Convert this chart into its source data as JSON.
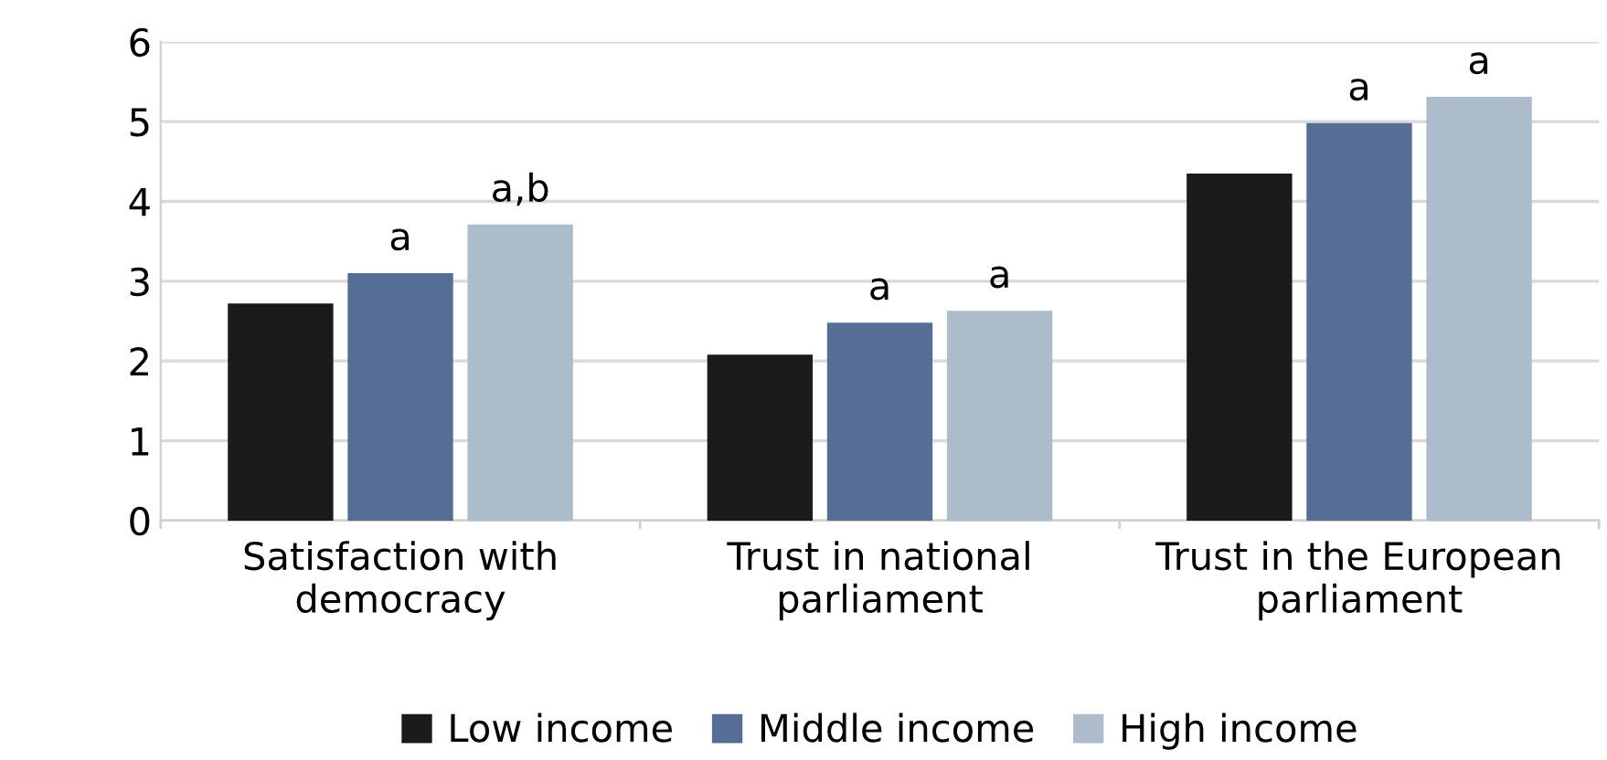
{
  "chart_data": {
    "type": "bar",
    "categories": [
      "Satisfaction with\ndemocracy",
      "Trust in national\nparliament",
      "Trust in the European\nparliament"
    ],
    "series": [
      {
        "name": "Low income",
        "color": "#1b1b1b",
        "values": [
          2.72,
          2.08,
          4.35
        ]
      },
      {
        "name": "Middle income",
        "color": "#566d96",
        "values": [
          3.1,
          2.48,
          4.98
        ],
        "value_labels": [
          "a",
          "a",
          "a"
        ]
      },
      {
        "name": "High income",
        "color": "#adbccb",
        "values": [
          3.71,
          2.63,
          5.31
        ],
        "value_labels": [
          "a,b",
          "a",
          "a"
        ]
      }
    ],
    "ylim": [
      0,
      6
    ],
    "yticks": [
      0,
      1,
      2,
      3,
      4,
      5,
      6
    ],
    "grid": "y",
    "legend": "bottom"
  }
}
